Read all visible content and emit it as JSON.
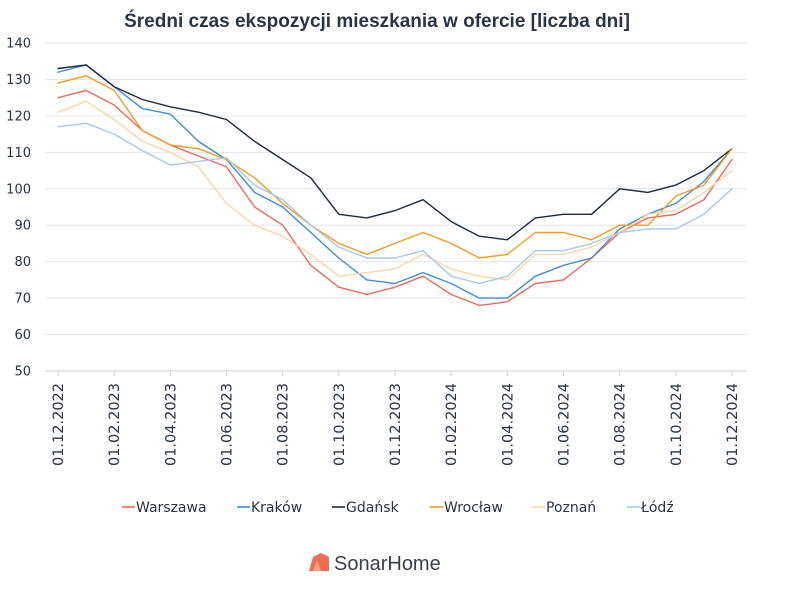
{
  "chart_data": {
    "type": "line",
    "title": "Średni czas ekspozycji mieszkania w ofercie [liczba dni]",
    "xlabel": "",
    "ylabel": "",
    "ylim": [
      50,
      140
    ],
    "yticks": [
      50,
      60,
      70,
      80,
      90,
      100,
      110,
      120,
      130,
      140
    ],
    "grid": true,
    "legend_position": "bottom",
    "x_tick_labels": [
      "01.12.2022",
      "01.02.2023",
      "01.04.2023",
      "01.06.2023",
      "01.08.2023",
      "01.10.2023",
      "01.12.2023",
      "01.02.2024",
      "01.04.2024",
      "01.06.2024",
      "01.08.2024",
      "01.10.2024",
      "01.12.2024"
    ],
    "x_tick_every": 2,
    "n_points": 25,
    "series": [
      {
        "name": "Warszawa",
        "color": "#ef6a5a",
        "values": [
          125,
          127,
          123,
          116,
          112,
          109,
          106,
          95,
          90,
          79,
          73,
          71,
          73,
          76,
          71,
          68,
          69,
          74,
          75,
          81,
          88,
          92,
          93,
          97,
          108
        ]
      },
      {
        "name": "Kraków",
        "color": "#3f8fd6",
        "values": [
          132,
          134,
          128,
          122,
          120.5,
          113,
          108,
          99,
          95,
          88,
          81,
          75,
          74,
          77,
          74,
          70,
          70,
          76,
          79,
          81,
          89,
          93,
          96,
          102,
          111
        ]
      },
      {
        "name": "Gdańsk",
        "color": "#1e2a44",
        "values": [
          133,
          134,
          128,
          124.5,
          122.5,
          121,
          119,
          113,
          108,
          103,
          93,
          92,
          94,
          97,
          91,
          87,
          86,
          92,
          93,
          93,
          100,
          99,
          101,
          105,
          111
        ]
      },
      {
        "name": "Wrocław",
        "color": "#f39c1f",
        "values": [
          129,
          131,
          127,
          116,
          112,
          111,
          108,
          103,
          96,
          90,
          85,
          82,
          85,
          88,
          85,
          81,
          82,
          88,
          88,
          86,
          90,
          90,
          98,
          101,
          111
        ]
      },
      {
        "name": "Poznań",
        "color": "#f8d7a8",
        "values": [
          121,
          124,
          119,
          113,
          110,
          106,
          96,
          90,
          87,
          82,
          76,
          77,
          78,
          82,
          78,
          76,
          75,
          82,
          82,
          84,
          88,
          93,
          94,
          99,
          105
        ]
      },
      {
        "name": "Łódź",
        "color": "#a6c9ee",
        "values": [
          117,
          118,
          115,
          110.5,
          106.5,
          107.5,
          108.5,
          101,
          97,
          90,
          84,
          81,
          81,
          83,
          76,
          74,
          76,
          83,
          83,
          85,
          88,
          89,
          89,
          93,
          100
        ]
      }
    ]
  },
  "footer": {
    "logo_text": "SonarHome",
    "logo_icon": "house-logo-icon",
    "logo_color": "#f26b4f"
  }
}
